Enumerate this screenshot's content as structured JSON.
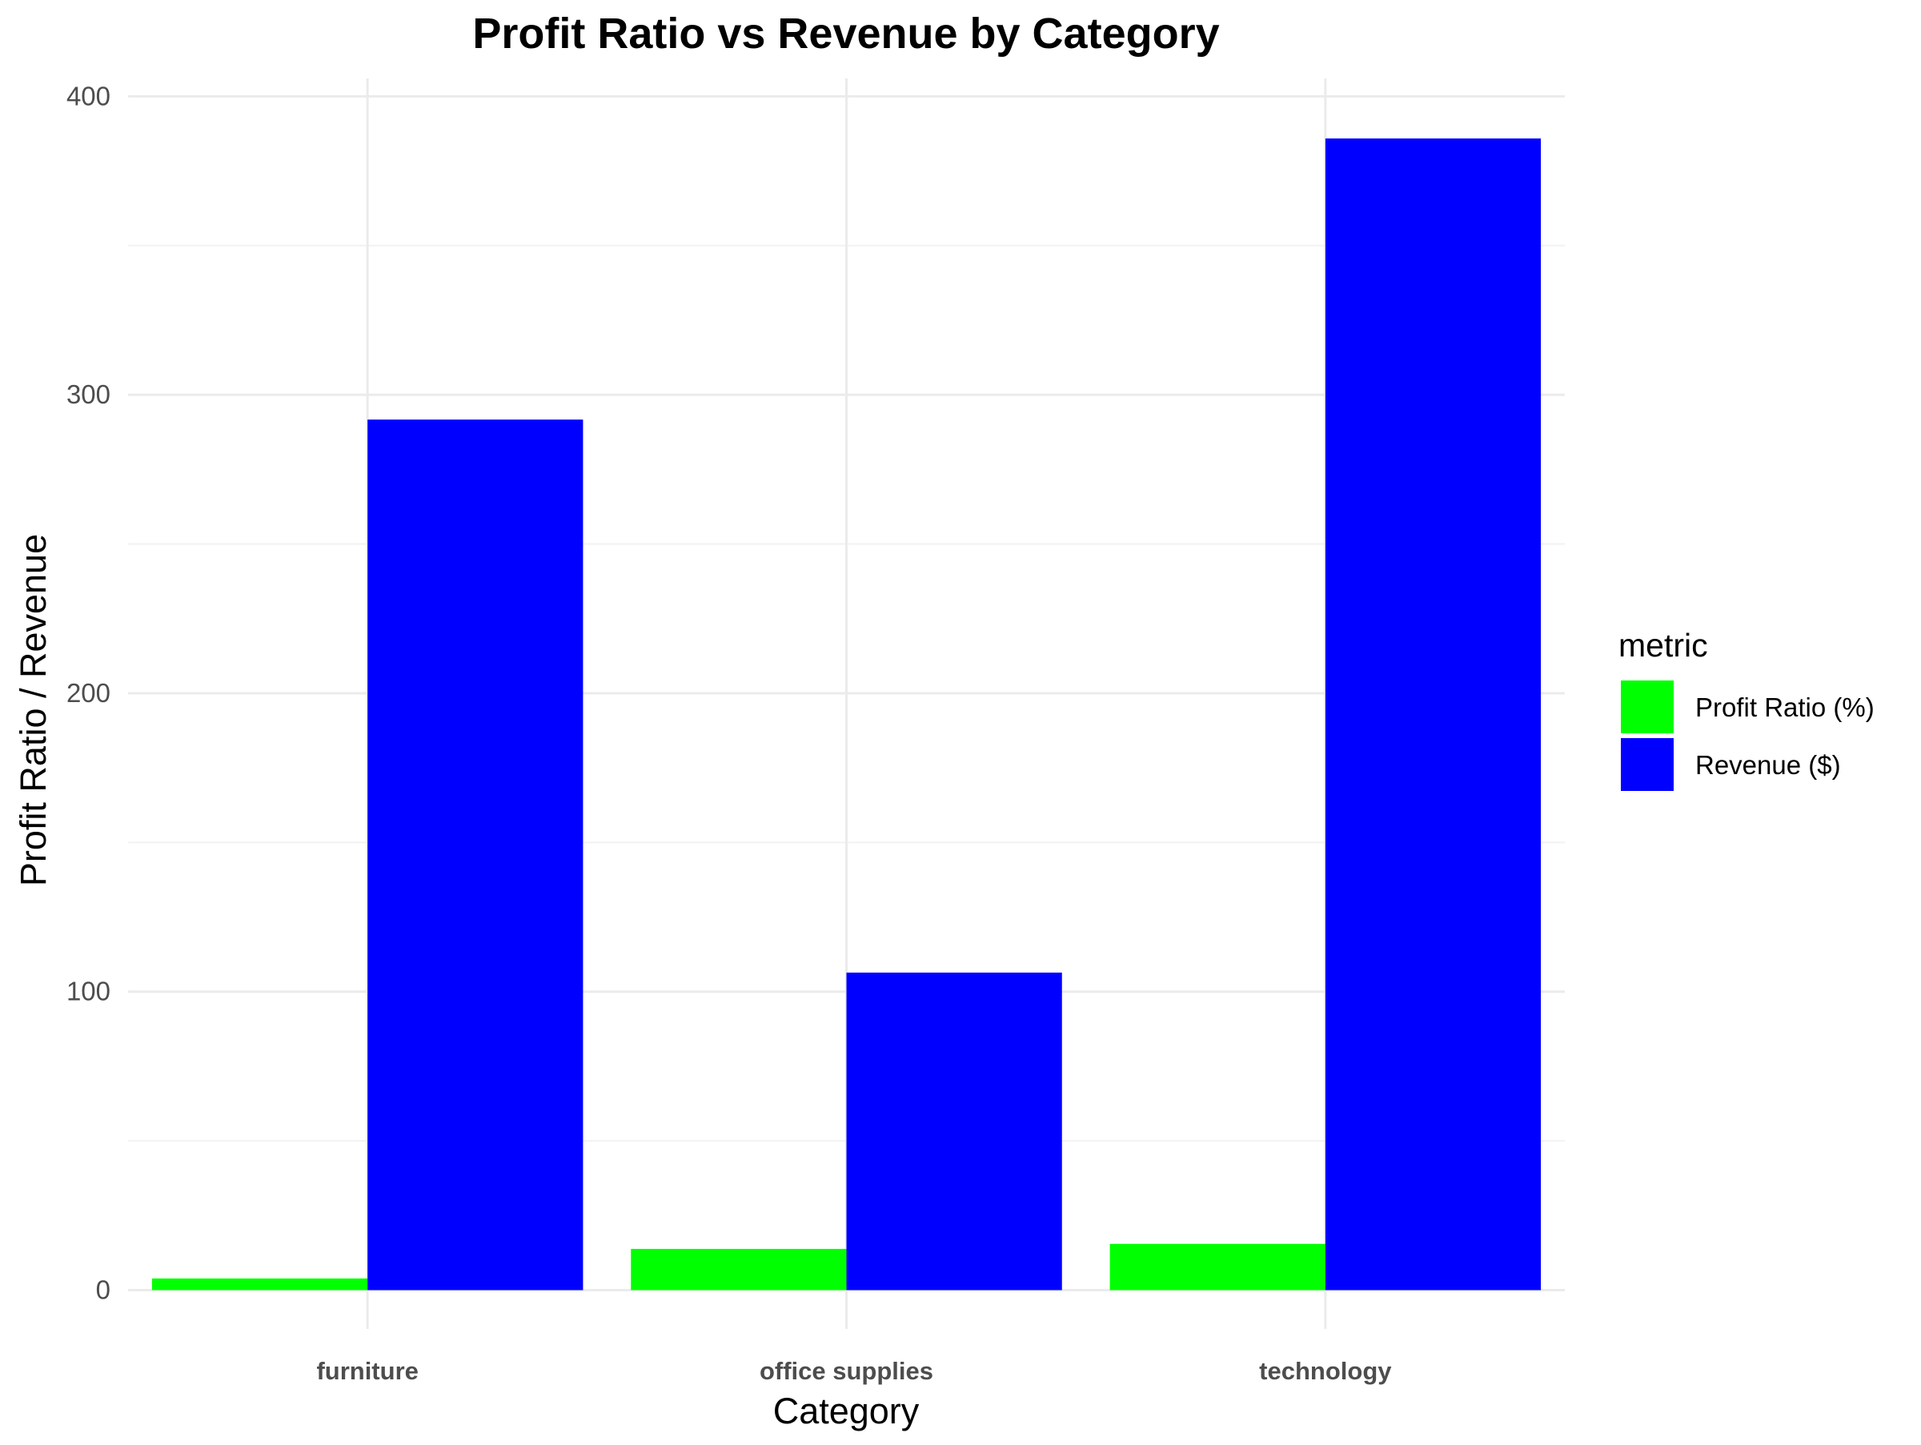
{
  "chart_data": {
    "type": "bar",
    "title": "Profit Ratio vs Revenue by Category",
    "xlabel": "Category",
    "ylabel": "Profit Ratio / Revenue",
    "categories": [
      "furniture",
      "office supplies",
      "technology"
    ],
    "series": [
      {
        "name": "Profit Ratio (%)",
        "color": "#00ff00",
        "values": [
          3.9,
          13.8,
          15.5
        ]
      },
      {
        "name": "Revenue ($)",
        "color": "#0000ff",
        "values": [
          291.7,
          106.4,
          385.9
        ]
      }
    ],
    "ylim": [
      -13,
      406
    ],
    "yticks": [
      0,
      100,
      200,
      300,
      400
    ],
    "grid": true,
    "legend": {
      "title": "metric",
      "position": "right"
    }
  }
}
